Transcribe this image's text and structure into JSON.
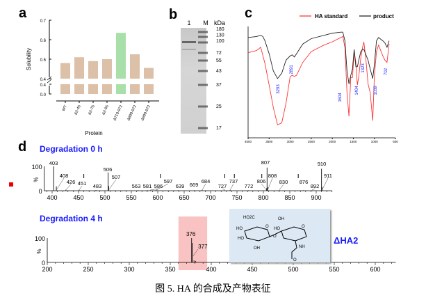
{
  "panel_labels": {
    "a": "a",
    "b": "b",
    "c": "c",
    "d": "d"
  },
  "caption": "图 5. HA 的合成及产物表征",
  "chart_data": [
    {
      "type": "bar",
      "panel": "a",
      "categories": [
        "WT",
        "Δ2-45",
        "Δ2-75",
        "Δ2-95",
        "Δ710-972",
        "Δ800-972",
        "Δ900-972"
      ],
      "values": [
        0.48,
        0.51,
        0.49,
        0.5,
        0.635,
        0.525,
        0.455
      ],
      "ylabel": "Solubility",
      "xlabel": "Protein",
      "ylim": [
        0,
        0.7
      ],
      "axis_break": [
        0.4,
        0.4
      ],
      "yticks": [
        "0.7",
        "0.6",
        "0.5",
        "0.4",
        "0.4",
        "0.0"
      ],
      "colors": {
        "default": "#dcc0a8",
        "highlight": "#a9dfa9"
      },
      "highlight_index": 4
    },
    {
      "type": "gel",
      "panel": "b",
      "lanes": [
        "1",
        "M"
      ],
      "unit": "kDa",
      "markers": [
        "180",
        "130",
        "100",
        "72",
        "55",
        "43",
        "37",
        "25",
        "17"
      ]
    },
    {
      "type": "line",
      "panel": "c",
      "xlim": [
        4000,
        500
      ],
      "xticks": [
        "4000",
        "3500",
        "3000",
        "2500",
        "2000",
        "1500",
        "1000",
        "500"
      ],
      "legend": "top",
      "series": [
        {
          "name": "HA standard",
          "color": "#ff3333",
          "x": [
            4000,
            3800,
            3700,
            3600,
            3500,
            3400,
            3300,
            3200,
            3100,
            3000,
            2950,
            2900,
            2850,
            2700,
            2500,
            2200,
            2000,
            1800,
            1750,
            1700,
            1650,
            1604,
            1560,
            1520,
            1480,
            1440,
            1404,
            1370,
            1323,
            1280,
            1250,
            1200,
            1150,
            1100,
            1039,
            1000,
            950,
            900,
            800,
            750,
            700,
            650
          ],
          "y": [
            77,
            79,
            82,
            67,
            47,
            26,
            10,
            12,
            30,
            55,
            56,
            55,
            56,
            68,
            78,
            84,
            87,
            91,
            92,
            82,
            40,
            18,
            54,
            54,
            78,
            68,
            47,
            55,
            72,
            82,
            87,
            70,
            48,
            40,
            14,
            55,
            78,
            84,
            74,
            70,
            68,
            85
          ]
        },
        {
          "name": "product",
          "color": "#222222",
          "x": [
            4000,
            3800,
            3700,
            3650,
            3600,
            3500,
            3400,
            3300,
            3200,
            3100,
            3000,
            2950,
            2900,
            2850,
            2700,
            2500,
            2200,
            2000,
            1800,
            1750,
            1700,
            1650,
            1604,
            1560,
            1520,
            1480,
            1440,
            1404,
            1370,
            1323,
            1280,
            1250,
            1200,
            1150,
            1100,
            1039,
            1000,
            950,
            900,
            800,
            750,
            700,
            650
          ],
          "y": [
            91,
            92,
            93,
            92,
            88,
            76,
            60,
            53,
            58,
            70,
            74,
            75,
            73,
            76,
            85,
            90,
            93,
            95,
            96,
            96,
            88,
            60,
            48,
            56,
            62,
            80,
            64,
            64,
            70,
            78,
            80,
            80,
            75,
            70,
            62,
            53,
            66,
            88,
            91,
            88,
            86,
            82,
            88
          ]
        }
      ],
      "annotations": [
        "3293",
        "2891",
        "1604",
        "1404",
        "1323",
        "1039",
        "702"
      ]
    },
    {
      "type": "bar",
      "panel": "d-top",
      "title": "Degradation 0 h",
      "xlim": [
        385,
        930
      ],
      "ylim": [
        0,
        100
      ],
      "ylabel": "%",
      "xticks": [
        "400",
        "450",
        "500",
        "550",
        "600",
        "650",
        "700",
        "750",
        "800",
        "850",
        "900"
      ],
      "yticks": [
        "100",
        "0"
      ],
      "peaks": [
        {
          "mz": 403,
          "i": 100
        },
        {
          "mz": 408,
          "i": 18
        },
        {
          "mz": 426,
          "i": 4
        },
        {
          "mz": 451,
          "i": 3
        },
        {
          "mz": 483,
          "i": 3
        },
        {
          "mz": 506,
          "i": 75
        },
        {
          "mz": 507,
          "i": 20
        },
        {
          "mz": 563,
          "i": 2
        },
        {
          "mz": 581,
          "i": 2
        },
        {
          "mz": 586,
          "i": 2
        },
        {
          "mz": 597,
          "i": 3
        },
        {
          "mz": 639,
          "i": 2
        },
        {
          "mz": 669,
          "i": 2
        },
        {
          "mz": 684,
          "i": 3
        },
        {
          "mz": 727,
          "i": 2
        },
        {
          "mz": 737,
          "i": 3
        },
        {
          "mz": 772,
          "i": 2
        },
        {
          "mz": 806,
          "i": 10
        },
        {
          "mz": 807,
          "i": 95
        },
        {
          "mz": 808,
          "i": 14
        },
        {
          "mz": 830,
          "i": 2
        },
        {
          "mz": 876,
          "i": 2
        },
        {
          "mz": 892,
          "i": 2
        },
        {
          "mz": 910,
          "i": 90
        },
        {
          "mz": 911,
          "i": 15
        }
      ]
    },
    {
      "type": "bar",
      "panel": "d-bottom",
      "title": "Degradation 4 h",
      "xlim": [
        200,
        625
      ],
      "ylim": [
        0,
        100
      ],
      "ylabel": "%",
      "xticks": [
        "200",
        "250",
        "300",
        "350",
        "400",
        "450",
        "500",
        "550",
        "600"
      ],
      "yticks": [
        "100",
        "0"
      ],
      "highlight_range": [
        360,
        395
      ],
      "highlight_color": "#f7b4b4",
      "peaks": [
        {
          "mz": 376,
          "i": 100
        },
        {
          "mz": 377,
          "i": 80
        },
        {
          "mz": 379,
          "i": 8
        },
        {
          "mz": 381,
          "i": 6
        }
      ],
      "peak_labels": [
        "376",
        "377"
      ],
      "structure": {
        "name": "ΔHA2",
        "labels": [
          "HO2C",
          "HO",
          "HO",
          "OH",
          "O",
          "O",
          "OH",
          "HO",
          "O",
          "NH",
          "O"
        ],
        "background": "#dce8f4"
      }
    }
  ]
}
